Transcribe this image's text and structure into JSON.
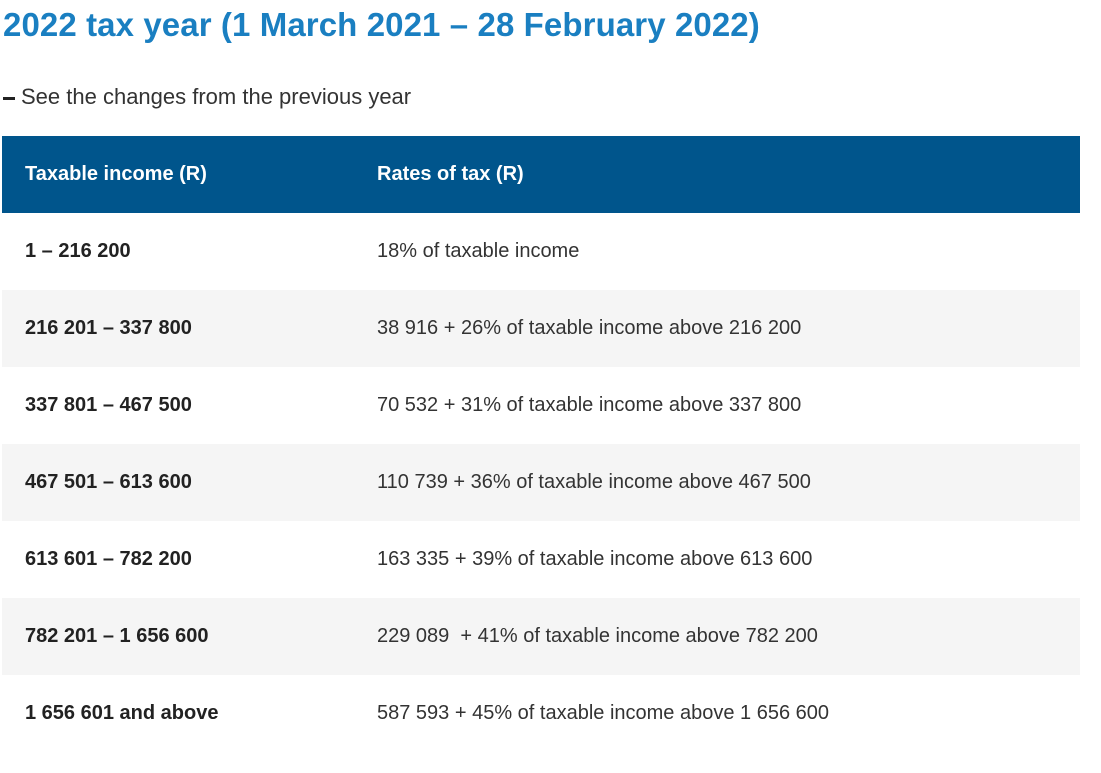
{
  "page": {
    "title": "2022 tax year (1 March 2021 – 28 February 2022)",
    "changes_link": "See the changes from the previous year"
  },
  "table": {
    "headers": [
      "Taxable income (R)",
      "Rates of tax (R)"
    ],
    "rows": [
      {
        "income": "1 – 216 200",
        "rate": "18% of taxable income"
      },
      {
        "income": "216 201 – 337 800",
        "rate": "38 916 + 26% of taxable income above 216 200"
      },
      {
        "income": "337 801 – 467 500",
        "rate": "70 532 + 31% of taxable income above 337 800"
      },
      {
        "income": "467 501 – 613 600",
        "rate": "110 739 + 36% of taxable income above 467 500"
      },
      {
        "income": "613 601 – 782 200",
        "rate": "163 335 + 39% of taxable income above 613 600"
      },
      {
        "income": "782 201 – 1 656 600",
        "rate": "229 089  + 41% of taxable income above 782 200"
      },
      {
        "income": "1 656 601 and above",
        "rate": "587 593 + 45% of taxable income above 1 656 600"
      }
    ]
  },
  "colors": {
    "title": "#1a7fc1",
    "header_bg": "#00558c",
    "row_alt_bg": "#f5f5f5"
  }
}
